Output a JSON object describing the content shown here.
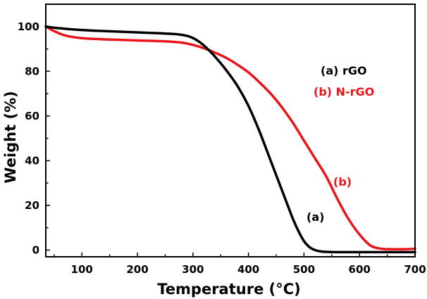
{
  "chart_data": {
    "type": "line",
    "title": "",
    "xlabel": "Temperature (°C)",
    "ylabel": "Weight (%)",
    "xlim": [
      35,
      700
    ],
    "ylim": [
      -3,
      110
    ],
    "x_ticks": [
      100,
      200,
      300,
      400,
      500,
      600,
      700
    ],
    "y_ticks": [
      0,
      20,
      40,
      60,
      80,
      100
    ],
    "legend": {
      "placement": "right-middle",
      "entries": [
        {
          "label": "(a) rGO",
          "color": "#000000"
        },
        {
          "label": "(b) N-rGO",
          "color": "#e8151b"
        }
      ]
    },
    "annotations": [
      {
        "text": "(a)",
        "x": 472,
        "y": 16,
        "color": "#000000"
      },
      {
        "text": "(b)",
        "x": 568,
        "y": 31,
        "color": "#e8151b"
      }
    ],
    "series": [
      {
        "name": "(a) rGO",
        "color": "#000000",
        "x": [
          35,
          50,
          80,
          120,
          160,
          200,
          240,
          270,
          290,
          305,
          320,
          340,
          360,
          380,
          400,
          420,
          440,
          460,
          470,
          480,
          490,
          500,
          510,
          520,
          530,
          540,
          560,
          600,
          650,
          700
        ],
        "y": [
          100,
          99.5,
          98.8,
          98.2,
          97.8,
          97.4,
          97.0,
          96.6,
          95.8,
          94.2,
          91.5,
          86.5,
          80.5,
          73.5,
          64.5,
          53,
          40,
          27,
          20.5,
          14,
          8.5,
          4,
          1.3,
          0,
          -0.6,
          -0.8,
          -0.9,
          -0.9,
          -0.9,
          -0.9
        ]
      },
      {
        "name": "(b) N-rGO",
        "color": "#e8151b",
        "x": [
          35,
          50,
          70,
          100,
          150,
          200,
          250,
          280,
          300,
          320,
          340,
          360,
          380,
          400,
          420,
          440,
          460,
          480,
          500,
          520,
          540,
          560,
          580,
          600,
          620,
          640,
          660,
          680,
          700
        ],
        "y": [
          100,
          98,
          96,
          94.8,
          94.2,
          93.8,
          93.4,
          92.8,
          91.8,
          90.3,
          88.3,
          86,
          83,
          79.5,
          75,
          70,
          64,
          57,
          49,
          41,
          33,
          23,
          14,
          7,
          2,
          0.6,
          0.4,
          0.4,
          0.6
        ]
      }
    ]
  }
}
